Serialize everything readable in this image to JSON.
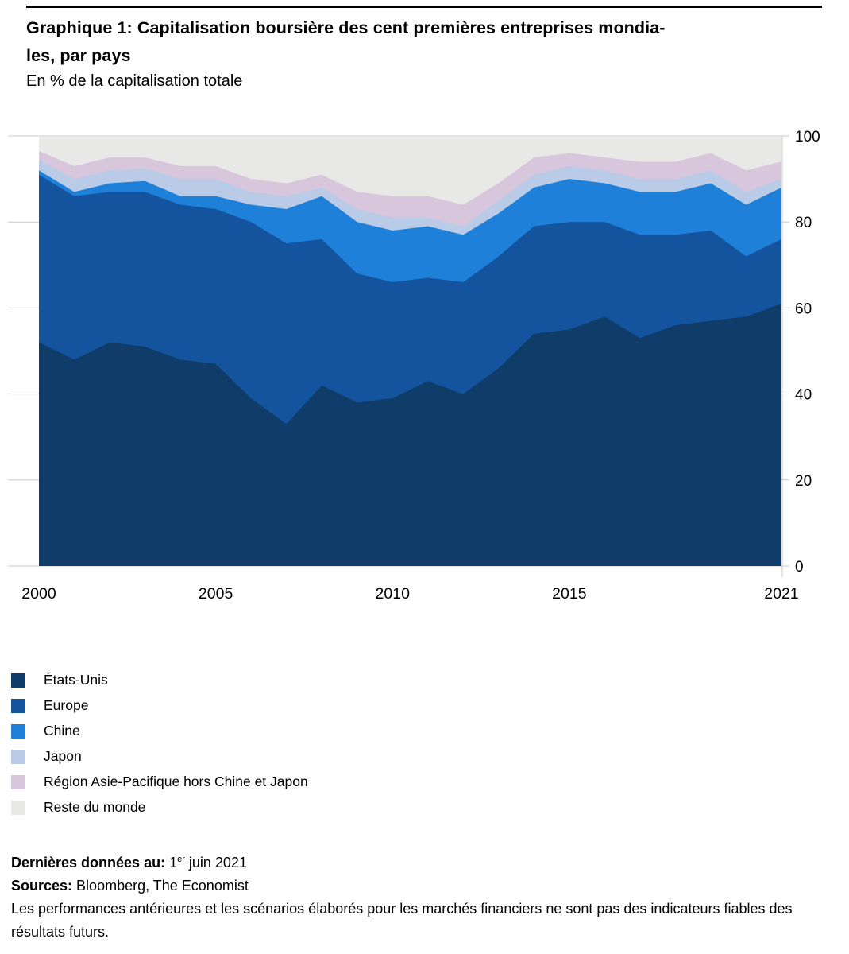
{
  "header": {
    "title_line1": "Graphique 1: Capitalisation boursière des cent premières entreprises mondia-",
    "title_line2": "les, par pays",
    "subtitle": "En % de la capitalisation totale"
  },
  "chart_data": {
    "type": "area",
    "stacked": true,
    "title": "Capitalisation boursière des cent premières entreprises mondiales, par pays",
    "ylabel": "En % de la capitalisation totale",
    "x": [
      2000,
      2001,
      2002,
      2003,
      2004,
      2005,
      2006,
      2007,
      2008,
      2009,
      2010,
      2011,
      2012,
      2013,
      2014,
      2015,
      2016,
      2017,
      2018,
      2019,
      2020,
      2021
    ],
    "series": [
      {
        "name": "États-Unis",
        "color": "#103c69",
        "values": [
          52,
          48,
          52,
          51,
          48,
          47,
          39,
          33,
          42,
          38,
          39,
          43,
          40,
          46,
          54,
          55,
          58,
          53,
          56,
          57,
          58,
          61
        ]
      },
      {
        "name": "Europe",
        "color": "#14549e",
        "values": [
          39,
          38,
          35,
          36,
          36,
          36,
          41,
          42,
          34,
          30,
          27,
          24,
          26,
          26,
          25,
          25,
          22,
          24,
          21,
          21,
          14,
          15
        ]
      },
      {
        "name": "Chine",
        "color": "#1e80d8",
        "values": [
          1,
          1,
          2,
          2.5,
          2,
          3,
          4,
          8,
          10,
          12,
          12,
          12,
          11,
          10,
          9,
          10,
          9,
          10,
          10,
          11,
          12,
          12
        ]
      },
      {
        "name": "Japon",
        "color": "#b9cbe7",
        "values": [
          2.5,
          3,
          3,
          3,
          4,
          4,
          3,
          3,
          2,
          3,
          3,
          2,
          2,
          3,
          3,
          3,
          3,
          3,
          3,
          3,
          3,
          2
        ]
      },
      {
        "name": "Région Asie-Pacifique hors Chine et Japon",
        "color": "#d8c6dc",
        "values": [
          2,
          3,
          3,
          2.5,
          3,
          3,
          3,
          3,
          3,
          4,
          5,
          5,
          5,
          4,
          4,
          3,
          3,
          4,
          4,
          4,
          5,
          4
        ]
      },
      {
        "name": "Reste du monde",
        "color": "#e8e8e6",
        "values": [
          3.5,
          7,
          5,
          5,
          7,
          7,
          10,
          11,
          9,
          13,
          14,
          14,
          16,
          11,
          5,
          4,
          5,
          6,
          6,
          4,
          8,
          6
        ]
      }
    ],
    "ylim": [
      0,
      100
    ],
    "yticks": [
      0,
      20,
      40,
      60,
      80,
      100
    ],
    "xticks": [
      2000,
      2005,
      2010,
      2015,
      2021
    ],
    "grid": true,
    "grid_color": "#c8c8c8",
    "y_axis_side": "right",
    "legend_position": "bottom-left"
  },
  "footer": {
    "last_data_label": "Dernières données au:",
    "last_data_value_num": "1",
    "last_data_value_sup": "er",
    "last_data_value_rest": "juin 2021",
    "sources_label": "Sources:",
    "sources_value": "Bloomberg, The Economist",
    "disclaimer": "Les performances antérieures et les scénarios élaborés pour les marchés financiers ne sont pas des indicateurs fiables des résultats futurs."
  }
}
